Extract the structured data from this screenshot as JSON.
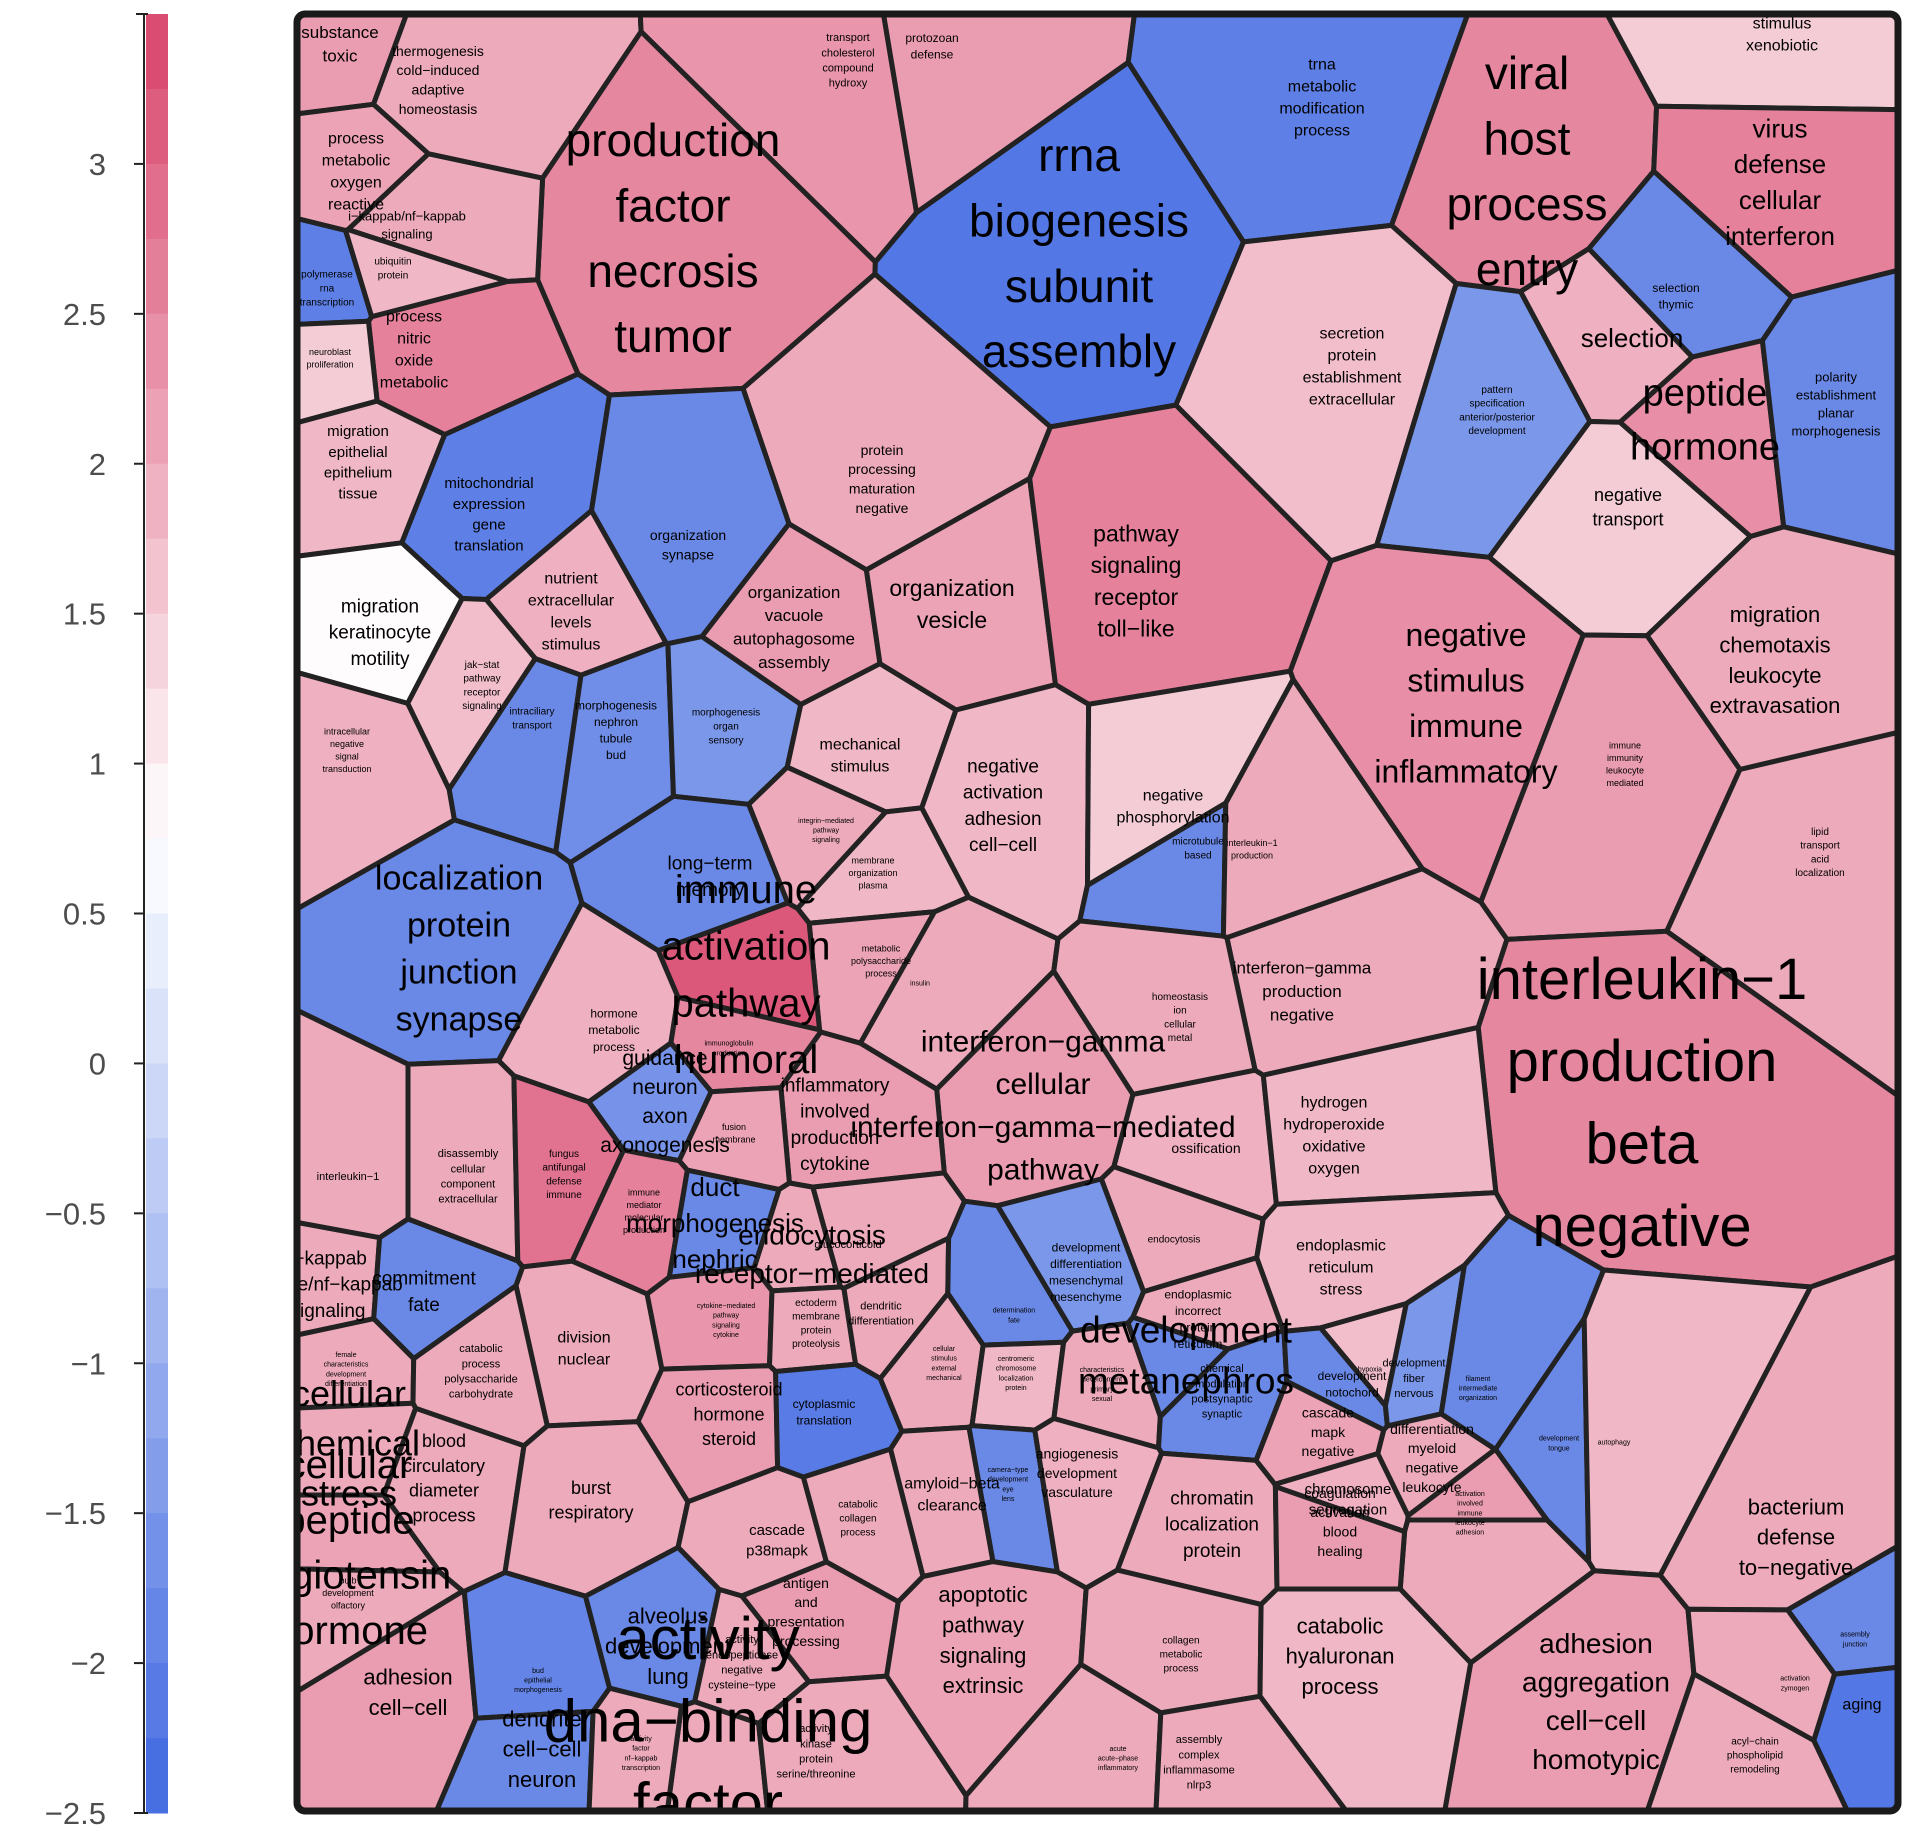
{
  "chart_data": {
    "type": "voronoi-treemap",
    "title": "",
    "colorbar": {
      "min": -2.5,
      "max": 3.5,
      "ticks": [
        3,
        2.5,
        2,
        1.5,
        1,
        0.5,
        0,
        -0.5,
        -1,
        -1.5,
        -2,
        -2.5
      ],
      "tick_labels": [
        "3",
        "2.5",
        "2",
        "1.5",
        "1",
        "0.5",
        "0",
        "−0.5",
        "−1",
        "−1.5",
        "−2",
        "−2.5"
      ],
      "low_color": "#4169e1",
      "mid_color": "#ffffff",
      "high_color": "#d8436a"
    },
    "cells": [
      {
        "words": [
          "substance",
          "toxic"
        ],
        "value": 2.2
      },
      {
        "words": [
          "thermogenesis",
          "cold−induced",
          "adaptive",
          "homeostasis"
        ],
        "value": 2.0
      },
      {
        "words": [
          "transport",
          "cholesterol",
          "compound",
          "hydroxy"
        ],
        "value": 2.3
      },
      {
        "words": [
          "protozoan",
          "defense"
        ],
        "value": 2.2
      },
      {
        "words": [
          "trna",
          "metabolic",
          "modification",
          "process"
        ],
        "value": -2.0
      },
      {
        "words": [
          "production",
          "factor",
          "necrosis",
          "tumor"
        ],
        "value": 2.5
      },
      {
        "words": [
          "rrna",
          "biogenesis",
          "subunit",
          "assembly"
        ],
        "value": -2.2
      },
      {
        "words": [
          "viral",
          "host",
          "process",
          "entry"
        ],
        "value": 2.5
      },
      {
        "words": [
          "stimulus",
          "xenobiotic"
        ],
        "value": 1.5
      },
      {
        "words": [
          "virus",
          "defense",
          "cellular",
          "interferon"
        ],
        "value": 2.6
      },
      {
        "words": [
          "process",
          "metabolic",
          "oxygen",
          "reactive"
        ],
        "value": 2.1
      },
      {
        "words": [
          "i−kappab/nf−kappab",
          "signaling"
        ],
        "value": 2.0
      },
      {
        "words": [
          "polymerase",
          "rna",
          "transcription"
        ],
        "value": -2.0
      },
      {
        "words": [
          "ubiquitin",
          "protein"
        ],
        "value": 1.8
      },
      {
        "words": [
          "process",
          "nitric",
          "oxide",
          "metabolic"
        ],
        "value": 2.6
      },
      {
        "words": [
          "neuroblast",
          "proliferation"
        ],
        "value": 1.5
      },
      {
        "words": [
          "migration",
          "epithelial",
          "epithelium",
          "tissue"
        ],
        "value": 1.8
      },
      {
        "words": [
          "mitochondrial",
          "expression",
          "gene",
          "translation"
        ],
        "value": -2.0
      },
      {
        "words": [
          "protein",
          "processing",
          "maturation",
          "negative"
        ],
        "value": 2.0
      },
      {
        "words": [
          "secretion",
          "protein",
          "establishment",
          "extracellular"
        ],
        "value": 1.7
      },
      {
        "words": [
          "selection",
          "thymic"
        ],
        "value": -1.8
      },
      {
        "words": [
          "selection"
        ],
        "value": 1.9
      },
      {
        "words": [
          "peptide",
          "hormone"
        ],
        "value": 2.4
      },
      {
        "words": [
          "pattern",
          "specification",
          "anterior/posterior",
          "development"
        ],
        "value": -1.5
      },
      {
        "words": [
          "polarity",
          "establishment",
          "planar",
          "morphogenesis"
        ],
        "value": -1.8
      },
      {
        "words": [
          "negative",
          "transport"
        ],
        "value": 1.5
      },
      {
        "words": [
          "migration",
          "keratinocyte",
          "motility"
        ],
        "value": 0.8
      },
      {
        "words": [
          "nutrient",
          "extracellular",
          "levels",
          "stimulus"
        ],
        "value": 1.9
      },
      {
        "words": [
          "organization",
          "synapse"
        ],
        "value": -1.8
      },
      {
        "words": [
          "organization",
          "vacuole",
          "autophagosome",
          "assembly"
        ],
        "value": 2.2
      },
      {
        "words": [
          "organization",
          "vesicle"
        ],
        "value": 2.1
      },
      {
        "words": [
          "pathway",
          "signaling",
          "receptor",
          "toll−like"
        ],
        "value": 2.6
      },
      {
        "words": [
          "negative",
          "stimulus",
          "immune",
          "inflammatory"
        ],
        "value": 2.4
      },
      {
        "words": [
          "migration",
          "chemotaxis",
          "leukocyte",
          "extravasation"
        ],
        "value": 2.0
      },
      {
        "words": [
          "jak−stat",
          "pathway",
          "receptor",
          "signaling"
        ],
        "value": 1.7
      },
      {
        "words": [
          "intraciliary",
          "transport"
        ],
        "value": -1.8
      },
      {
        "words": [
          "morphogenesis",
          "nephron",
          "tubule",
          "bud"
        ],
        "value": -1.7
      },
      {
        "words": [
          "morphogenesis",
          "organ",
          "sensory"
        ],
        "value": -1.5
      },
      {
        "words": [
          "mechanical",
          "stimulus"
        ],
        "value": 1.8
      },
      {
        "words": [
          "negative",
          "activation",
          "adhesion",
          "cell−cell"
        ],
        "value": 1.8
      },
      {
        "words": [
          "negative",
          "phosphorylation"
        ],
        "value": 1.5
      },
      {
        "words": [
          "intracellular",
          "negative",
          "signal",
          "transduction"
        ],
        "value": 1.9
      },
      {
        "words": [
          "immune",
          "immunity",
          "leukocyte",
          "mediated"
        ],
        "value": 2.2
      },
      {
        "words": [
          "lipid",
          "transport",
          "acid",
          "localization"
        ],
        "value": 2.0
      },
      {
        "words": [
          "localization",
          "protein",
          "junction",
          "synapse"
        ],
        "value": -1.8
      },
      {
        "words": [
          "long−term",
          "memory"
        ],
        "value": -1.8
      },
      {
        "words": [
          "integrin−mediated",
          "pathway",
          "signaling"
        ],
        "value": 2.0
      },
      {
        "words": [
          "membrane",
          "organization",
          "plasma"
        ],
        "value": 1.8
      },
      {
        "words": [
          "metabolic",
          "polysaccharide",
          "process"
        ],
        "value": 2.1
      },
      {
        "words": [
          "microtubule",
          "based"
        ],
        "value": -1.8
      },
      {
        "words": [
          "interleukin−1",
          "production"
        ],
        "value": 2.0
      },
      {
        "words": [
          "interferon−gamma",
          "production",
          "negative"
        ],
        "value": 2.0
      },
      {
        "words": [
          "interleukin−1",
          "production",
          "beta",
          "negative"
        ],
        "value": 2.5
      },
      {
        "words": [
          "immune",
          "activation",
          "pathway",
          "humoral"
        ],
        "value": 3.2
      },
      {
        "words": [
          "insulin"
        ],
        "value": 2.0
      },
      {
        "words": [
          "interferon−gamma",
          "cellular",
          "interferon−gamma−mediated",
          "pathway"
        ],
        "value": 2.2
      },
      {
        "words": [
          "homeostasis",
          "ion",
          "cellular",
          "metal"
        ],
        "value": 2.0
      },
      {
        "words": [
          "hormone",
          "metabolic",
          "process"
        ],
        "value": 1.9
      },
      {
        "words": [
          "immunoglobulin",
          "production"
        ],
        "value": 2.5
      },
      {
        "words": [
          "inflammatory",
          "involved",
          "production",
          "cytokine"
        ],
        "value": 2.2
      },
      {
        "words": [
          "guidance",
          "neuron",
          "axon",
          "axonogenesis"
        ],
        "value": -1.6
      },
      {
        "words": [
          "fusion",
          "membrane"
        ],
        "value": 2.1
      },
      {
        "words": [
          "ossification"
        ],
        "value": 1.9
      },
      {
        "words": [
          "hydrogen",
          "hydroperoxide",
          "oxidative",
          "oxygen"
        ],
        "value": 1.8
      },
      {
        "words": [
          "interleukin−1"
        ],
        "value": 2.0
      },
      {
        "words": [
          "disassembly",
          "cellular",
          "component",
          "extracellular"
        ],
        "value": 2.0
      },
      {
        "words": [
          "fungus",
          "antifungal",
          "defense",
          "immune"
        ],
        "value": 2.8
      },
      {
        "words": [
          "immune",
          "mediator",
          "molecular",
          "production"
        ],
        "value": 2.6
      },
      {
        "words": [
          "duct",
          "morphogenesis",
          "nephric"
        ],
        "value": -1.8
      },
      {
        "words": [
          "glucocorticoid"
        ],
        "value": 2.0
      },
      {
        "words": [
          "endocytosis",
          "receptor−mediated"
        ],
        "value": 2.0
      },
      {
        "words": [
          "endocytosis"
        ],
        "value": 2.0
      },
      {
        "words": [
          "endoplasmic",
          "reticulum",
          "stress"
        ],
        "value": 1.8
      },
      {
        "words": [
          "i−kappab",
          "kinase/nf−kappab",
          "signaling"
        ],
        "value": 2.0
      },
      {
        "words": [
          "commitment",
          "fate"
        ],
        "value": -1.8
      },
      {
        "words": [
          "division",
          "nuclear"
        ],
        "value": 2.0
      },
      {
        "words": [
          "cytokine−mediated",
          "pathway",
          "signaling",
          "cytokine"
        ],
        "value": 2.3
      },
      {
        "words": [
          "ectoderm",
          "membrane",
          "protein",
          "proteolysis"
        ],
        "value": 2.0
      },
      {
        "words": [
          "dendritic",
          "differentiation"
        ],
        "value": 2.0
      },
      {
        "words": [
          "determination",
          "fate"
        ],
        "value": -1.8
      },
      {
        "words": [
          "development",
          "differentiation",
          "mesenchymal",
          "mesenchyme"
        ],
        "value": -1.5
      },
      {
        "words": [
          "endoplasmic",
          "incorrect",
          "protein",
          "reticulum"
        ],
        "value": 2.0
      },
      {
        "words": [
          "development",
          "metanephros"
        ],
        "value": -1.8
      },
      {
        "words": [
          "hypoxia"
        ],
        "value": 1.7
      },
      {
        "words": [
          "female",
          "characteristics",
          "development",
          "differentiation"
        ],
        "value": 2.0
      },
      {
        "words": [
          "catabolic",
          "process",
          "polysaccharide",
          "carbohydrate"
        ],
        "value": 2.0
      },
      {
        "words": [
          "corticosteroid",
          "hormone",
          "steroid"
        ],
        "value": 2.2
      },
      {
        "words": [
          "cytoplasmic",
          "translation"
        ],
        "value": -2.1
      },
      {
        "words": [
          "cellular",
          "stimulus",
          "external",
          "mechanical"
        ],
        "value": 2.0
      },
      {
        "words": [
          "centromeric",
          "chromosome",
          "localization",
          "protein"
        ],
        "value": 1.8
      },
      {
        "words": [
          "characteristics",
          "development",
          "primary",
          "sexual"
        ],
        "value": 2.0
      },
      {
        "words": [
          "chemical",
          "modulation",
          "postsynaptic",
          "synaptic"
        ],
        "value": -1.8
      },
      {
        "words": [
          "development",
          "notochord"
        ],
        "value": -1.8
      },
      {
        "words": [
          "development",
          "fiber",
          "nervous"
        ],
        "value": -1.5
      },
      {
        "words": [
          "filament",
          "intermediate",
          "organization"
        ],
        "value": -1.8
      },
      {
        "words": [
          "development",
          "tongue"
        ],
        "value": -1.8
      },
      {
        "words": [
          "autophagy"
        ],
        "value": 1.8
      },
      {
        "words": [
          "cellular",
          "chemical",
          "stress"
        ],
        "value": 2.0
      },
      {
        "words": [
          "blood",
          "circulatory",
          "diameter",
          "process"
        ],
        "value": 2.0
      },
      {
        "words": [
          "burst",
          "respiratory"
        ],
        "value": 2.0
      },
      {
        "words": [
          "amyloid−beta",
          "clearance"
        ],
        "value": 2.0
      },
      {
        "words": [
          "camera−type",
          "development",
          "eye",
          "lens"
        ],
        "value": -1.8
      },
      {
        "words": [
          "angiogenesis",
          "development",
          "vasculature"
        ],
        "value": 1.9
      },
      {
        "words": [
          "chromatin",
          "localization",
          "protein"
        ],
        "value": 2.0
      },
      {
        "words": [
          "cascade",
          "mapk",
          "negative"
        ],
        "value": 2.1
      },
      {
        "words": [
          "chromosome",
          "segregation"
        ],
        "value": 1.9
      },
      {
        "words": [
          "differentiation",
          "myeloid",
          "negative",
          "leukocyte"
        ],
        "value": 2.0
      },
      {
        "words": [
          "adhesion"
        ],
        "value": 2.0
      },
      {
        "words": [
          "bacterium",
          "defense",
          "to−negative"
        ],
        "value": 2.0
      },
      {
        "words": [
          "cellular",
          "peptide",
          "angiotensin",
          "hormone"
        ],
        "value": 2.1
      },
      {
        "words": [
          "bulb",
          "development",
          "olfactory"
        ],
        "value": 2.0
      },
      {
        "words": [
          "cascade",
          "p38mapk"
        ],
        "value": 2.0
      },
      {
        "words": [
          "catabolic",
          "collagen",
          "process"
        ],
        "value": 2.0
      },
      {
        "words": [
          "coagulation",
          "activation",
          "blood",
          "healing"
        ],
        "value": 2.2
      },
      {
        "words": [
          "activation",
          "involved",
          "immune",
          "leukocyte"
        ],
        "value": 2.2
      },
      {
        "words": [
          "adhesion",
          "aggregation",
          "cell−cell",
          "homotypic"
        ],
        "value": 2.2
      },
      {
        "words": [
          "adhesion",
          "cell−cell"
        ],
        "value": 2.2
      },
      {
        "words": [
          "bud",
          "epithelial",
          "morphogenesis"
        ],
        "value": -1.9
      },
      {
        "words": [
          "alveolus",
          "development",
          "lung"
        ],
        "value": -1.8
      },
      {
        "words": [
          "activity",
          "endopeptidase",
          "negative",
          "cysteine−type"
        ],
        "value": 2.0
      },
      {
        "words": [
          "antigen",
          "and",
          "presentation",
          "processing"
        ],
        "value": 2.2
      },
      {
        "words": [
          "apoptotic",
          "pathway",
          "signaling",
          "extrinsic"
        ],
        "value": 2.1
      },
      {
        "words": [
          "collagen",
          "metabolic",
          "process"
        ],
        "value": 2.0
      },
      {
        "words": [
          "catabolic",
          "hyaluronan",
          "process"
        ],
        "value": 1.8
      },
      {
        "words": [
          "assembly",
          "junction"
        ],
        "value": -1.8
      },
      {
        "words": [
          "activation",
          "zymogen"
        ],
        "value": 2.0
      },
      {
        "words": [
          "aging"
        ],
        "value": -2.2
      },
      {
        "words": [
          "dendrite",
          "cell−cell",
          "neuron"
        ],
        "value": -1.8
      },
      {
        "words": [
          "activity",
          "dna−binding",
          "factor",
          "transcription"
        ],
        "value": 2.0
      },
      {
        "words": [
          "activity",
          "factor",
          "nf−kappab",
          "transcription"
        ],
        "value": 2.0
      },
      {
        "words": [
          "activity",
          "kinase",
          "protein",
          "serine/threonine"
        ],
        "value": 2.0
      },
      {
        "words": [
          "acute",
          "acute−phase",
          "inflammatory"
        ],
        "value": 2.0
      },
      {
        "words": [
          "assembly",
          "complex",
          "inflammasome",
          "nlrp3"
        ],
        "value": 2.0
      },
      {
        "words": [
          "acyl−chain",
          "phospholipid",
          "remodeling"
        ],
        "value": 2.0
      }
    ]
  }
}
